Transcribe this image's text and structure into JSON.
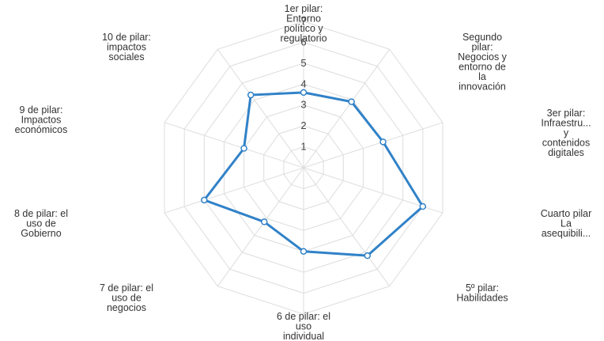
{
  "chart_data": {
    "type": "radar",
    "categories": [
      [
        "1er pilar:",
        "Entorno",
        "político y",
        "regulatorio"
      ],
      [
        "Segundo",
        "pilar:",
        "Negocios y",
        "entorno de",
        "la",
        "innovación"
      ],
      [
        "3er pilar:",
        "Infraestru...",
        "y",
        "contenidos",
        "digitales"
      ],
      [
        "Cuarto pilar",
        "La",
        "asequibili..."
      ],
      [
        "5º pilar:",
        "Habilidades"
      ],
      [
        "6 de pilar: el",
        "uso",
        "individual"
      ],
      [
        "7 de pilar: el",
        "uso de",
        "negocios"
      ],
      [
        "8 de pilar: el",
        "uso de",
        "Gobierno"
      ],
      [
        "9 de pilar:",
        "Impactos",
        "económicos"
      ],
      [
        "10 de pilar:",
        "impactos",
        "sociales"
      ]
    ],
    "values": [
      3.6,
      3.9,
      4.0,
      6.0,
      5.2,
      4.0,
      3.2,
      5.0,
      3.0,
      4.3
    ],
    "scale_min": 0,
    "scale_max": 7,
    "ticks": [
      "1",
      "2",
      "3",
      "4",
      "5",
      "6",
      "7"
    ],
    "grid": true,
    "series_color": "#3182c8",
    "grid_color": "#dddddd"
  }
}
